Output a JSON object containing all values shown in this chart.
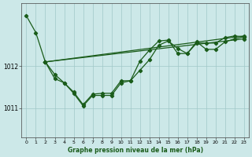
{
  "title": "Graphe pression niveau de la mer (hPa)",
  "background_color": "#cce8e8",
  "plot_bg_color": "#cce8e8",
  "line_color": "#1a5c1a",
  "grid_color": "#a0c8c8",
  "ylabel_ticks": [
    1011,
    1012
  ],
  "xlim": [
    -0.5,
    23.5
  ],
  "ylim": [
    1010.3,
    1013.5
  ],
  "xticks": [
    0,
    1,
    2,
    3,
    4,
    5,
    6,
    7,
    8,
    9,
    10,
    11,
    12,
    13,
    14,
    15,
    16,
    17,
    18,
    19,
    20,
    21,
    22,
    23
  ],
  "series1": [
    [
      0,
      1013.2
    ],
    [
      1,
      1012.8
    ],
    [
      2,
      1012.1
    ],
    [
      3,
      1011.7
    ],
    [
      4,
      1011.6
    ],
    [
      5,
      1011.35
    ],
    [
      6,
      1011.05
    ],
    [
      7,
      1011.3
    ],
    [
      8,
      1011.3
    ],
    [
      9,
      1011.3
    ],
    [
      10,
      1011.6
    ],
    [
      11,
      1011.65
    ],
    [
      12,
      1011.9
    ],
    [
      13,
      1012.15
    ],
    [
      14,
      1012.5
    ],
    [
      15,
      1012.6
    ],
    [
      16,
      1012.42
    ],
    [
      17,
      1012.3
    ],
    [
      18,
      1012.58
    ],
    [
      19,
      1012.4
    ],
    [
      20,
      1012.4
    ],
    [
      21,
      1012.58
    ],
    [
      22,
      1012.65
    ],
    [
      23,
      1012.7
    ]
  ],
  "series2": [
    [
      2,
      1012.1
    ],
    [
      3,
      1011.8
    ],
    [
      4,
      1011.6
    ],
    [
      5,
      1011.38
    ],
    [
      6,
      1011.08
    ],
    [
      7,
      1011.33
    ],
    [
      8,
      1011.35
    ],
    [
      9,
      1011.35
    ],
    [
      10,
      1011.65
    ],
    [
      11,
      1011.65
    ],
    [
      12,
      1012.12
    ],
    [
      13,
      1012.38
    ],
    [
      14,
      1012.6
    ],
    [
      15,
      1012.62
    ],
    [
      16,
      1012.3
    ],
    [
      17,
      1012.3
    ],
    [
      18,
      1012.55
    ],
    [
      19,
      1012.55
    ],
    [
      20,
      1012.55
    ],
    [
      21,
      1012.68
    ],
    [
      22,
      1012.72
    ],
    [
      23,
      1012.7
    ]
  ],
  "trend1_x": [
    2,
    23
  ],
  "trend1_y": [
    1012.1,
    1012.72
  ],
  "trend2_x": [
    2,
    23
  ],
  "trend2_y": [
    1012.1,
    1012.65
  ]
}
